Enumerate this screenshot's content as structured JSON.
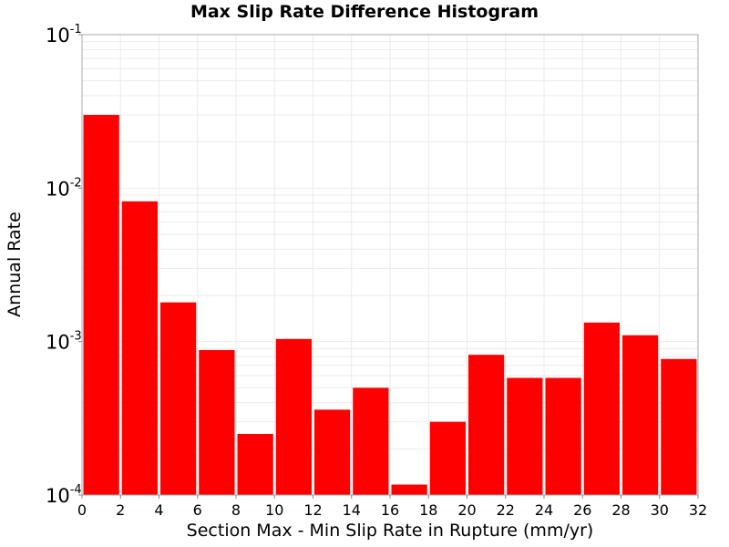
{
  "chart_data": {
    "type": "bar",
    "title": "Max Slip Rate Difference Histogram",
    "xlabel": "Section Max - Min Slip Rate in Rupture (mm/yr)",
    "ylabel": "Annual Rate",
    "y_scale": "log",
    "xlim": [
      0,
      32
    ],
    "ylim": [
      0.0001,
      0.1
    ],
    "x_ticks": [
      0,
      2,
      4,
      6,
      8,
      10,
      12,
      14,
      16,
      18,
      20,
      22,
      24,
      26,
      28,
      30,
      32
    ],
    "y_ticks": [
      {
        "base": "10",
        "exp": "-4",
        "value": 0.0001
      },
      {
        "base": "10",
        "exp": "-3",
        "value": 0.001
      },
      {
        "base": "10",
        "exp": "-2",
        "value": 0.01
      },
      {
        "base": "10",
        "exp": "-1",
        "value": 0.1
      }
    ],
    "bin_width": 2,
    "bins": [
      {
        "x0": 0,
        "x1": 2,
        "value": 0.03
      },
      {
        "x0": 2,
        "x1": 4,
        "value": 0.0082
      },
      {
        "x0": 4,
        "x1": 6,
        "value": 0.0018
      },
      {
        "x0": 6,
        "x1": 8,
        "value": 0.00088
      },
      {
        "x0": 8,
        "x1": 10,
        "value": 0.00025
      },
      {
        "x0": 10,
        "x1": 12,
        "value": 0.00104
      },
      {
        "x0": 12,
        "x1": 14,
        "value": 0.00036
      },
      {
        "x0": 14,
        "x1": 16,
        "value": 0.0005
      },
      {
        "x0": 16,
        "x1": 18,
        "value": 0.000117
      },
      {
        "x0": 18,
        "x1": 20,
        "value": 0.0003
      },
      {
        "x0": 20,
        "x1": 22,
        "value": 0.00082
      },
      {
        "x0": 22,
        "x1": 24,
        "value": 0.00058
      },
      {
        "x0": 24,
        "x1": 26,
        "value": 0.00058
      },
      {
        "x0": 26,
        "x1": 28,
        "value": 0.00133
      },
      {
        "x0": 28,
        "x1": 30,
        "value": 0.0011
      },
      {
        "x0": 30,
        "x1": 32,
        "value": 0.00077
      }
    ],
    "bar_color": "#ff0000",
    "grid": true,
    "grid_color": "#ebebeb",
    "frame_color": "#aaaaaa",
    "legend": "none"
  }
}
